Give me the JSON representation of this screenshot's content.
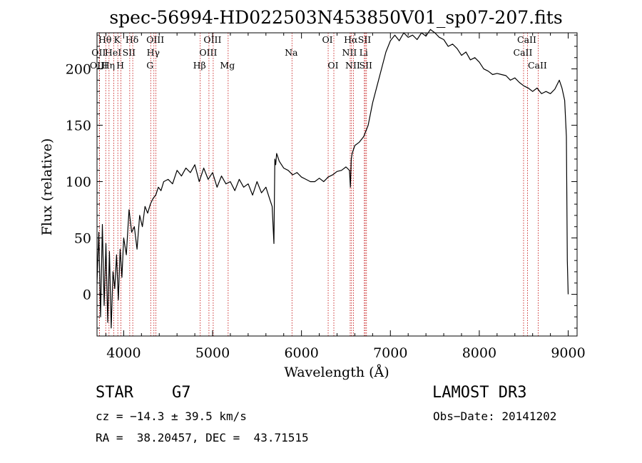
{
  "chart_data": {
    "type": "line",
    "title": "spec-56994-HD022503N453850V01_sp07-207.fits",
    "xlabel": "Wavelength (Å)",
    "ylabel": "Flux (relative)",
    "xlim": [
      3700,
      9100
    ],
    "ylim": [
      -37,
      232
    ],
    "xticks": [
      4000,
      5000,
      6000,
      7000,
      8000,
      9000
    ],
    "yticks": [
      0,
      50,
      100,
      150,
      200
    ],
    "series": [
      {
        "name": "spectrum",
        "color": "#000000",
        "x": [
          3700,
          3720,
          3740,
          3760,
          3780,
          3800,
          3820,
          3840,
          3860,
          3880,
          3900,
          3920,
          3940,
          3960,
          3980,
          4000,
          4030,
          4060,
          4090,
          4120,
          4150,
          4180,
          4210,
          4240,
          4270,
          4300,
          4330,
          4360,
          4390,
          4420,
          4450,
          4500,
          4550,
          4600,
          4650,
          4700,
          4750,
          4800,
          4850,
          4900,
          4950,
          5000,
          5050,
          5100,
          5150,
          5200,
          5250,
          5300,
          5350,
          5400,
          5450,
          5500,
          5550,
          5600,
          5640,
          5670,
          5690,
          5700,
          5710,
          5720,
          5750,
          5800,
          5850,
          5900,
          5950,
          6000,
          6050,
          6100,
          6150,
          6200,
          6250,
          6300,
          6350,
          6400,
          6450,
          6500,
          6540,
          6550,
          6560,
          6570,
          6600,
          6650,
          6700,
          6750,
          6800,
          6850,
          6900,
          6950,
          7000,
          7050,
          7100,
          7150,
          7200,
          7250,
          7300,
          7350,
          7400,
          7450,
          7500,
          7550,
          7600,
          7650,
          7700,
          7750,
          7800,
          7850,
          7900,
          7950,
          8000,
          8050,
          8100,
          8150,
          8200,
          8250,
          8300,
          8350,
          8400,
          8450,
          8500,
          8550,
          8600,
          8650,
          8700,
          8750,
          8800,
          8850,
          8900,
          8930,
          8960,
          8980,
          8990,
          9000
        ],
        "y": [
          10,
          55,
          -20,
          62,
          -10,
          45,
          -25,
          38,
          -30,
          20,
          5,
          35,
          -5,
          40,
          15,
          50,
          35,
          75,
          55,
          60,
          40,
          70,
          60,
          78,
          72,
          80,
          85,
          88,
          95,
          92,
          100,
          102,
          98,
          110,
          105,
          112,
          108,
          115,
          100,
          112,
          102,
          108,
          95,
          105,
          98,
          100,
          92,
          102,
          95,
          98,
          88,
          100,
          90,
          95,
          85,
          78,
          45,
          120,
          115,
          125,
          118,
          112,
          110,
          106,
          108,
          104,
          102,
          100,
          100,
          103,
          100,
          104,
          106,
          109,
          110,
          113,
          110,
          95,
          120,
          125,
          132,
          135,
          140,
          150,
          170,
          185,
          200,
          215,
          225,
          230,
          225,
          232,
          228,
          230,
          226,
          232,
          229,
          235,
          232,
          228,
          226,
          220,
          222,
          218,
          212,
          215,
          208,
          210,
          206,
          200,
          198,
          195,
          196,
          195,
          194,
          190,
          192,
          188,
          185,
          183,
          180,
          183,
          178,
          180,
          178,
          182,
          190,
          183,
          172,
          140,
          30,
          0
        ]
      }
    ],
    "lines": [
      {
        "name": "Hθ",
        "x": 3798,
        "row": 0
      },
      {
        "name": "OII",
        "x": 3727,
        "row": 1
      },
      {
        "name": "OIII",
        "x": 3727,
        "row": 2
      },
      {
        "name": "Hη",
        "x": 3835,
        "row": 2
      },
      {
        "name": "HeI",
        "x": 3889,
        "row": 1
      },
      {
        "name": "K",
        "x": 3934,
        "row": 0
      },
      {
        "name": "H",
        "x": 3969,
        "row": 2
      },
      {
        "name": "SII",
        "x": 4068,
        "row": 1
      },
      {
        "name": "Hδ",
        "x": 4102,
        "row": 0
      },
      {
        "name": "OIII",
        "x": 4363,
        "row": 0
      },
      {
        "name": "Hγ",
        "x": 4340,
        "row": 1
      },
      {
        "name": "G",
        "x": 4304,
        "row": 2
      },
      {
        "name": "Hβ",
        "x": 4861,
        "row": 2
      },
      {
        "name": "OIII",
        "x": 5007,
        "row": 0
      },
      {
        "name": "OIII",
        "x": 4959,
        "row": 1
      },
      {
        "name": "Mg",
        "x": 5175,
        "row": 2
      },
      {
        "name": "Na",
        "x": 5893,
        "row": 1
      },
      {
        "name": "OI",
        "x": 6300,
        "row": 0
      },
      {
        "name": "OI",
        "x": 6364,
        "row": 2
      },
      {
        "name": "Hα",
        "x": 6563,
        "row": 0
      },
      {
        "name": "NII",
        "x": 6548,
        "row": 1
      },
      {
        "name": "NII",
        "x": 6584,
        "row": 2
      },
      {
        "name": "SII",
        "x": 6717,
        "row": 0
      },
      {
        "name": "Li",
        "x": 6707,
        "row": 1
      },
      {
        "name": "SII",
        "x": 6731,
        "row": 2
      },
      {
        "name": "CaII",
        "x": 8542,
        "row": 0
      },
      {
        "name": "CaII",
        "x": 8498,
        "row": 1
      },
      {
        "name": "CaII",
        "x": 8662,
        "row": 2
      }
    ],
    "line_color": "#c00000",
    "grid": false
  },
  "info": {
    "class": "STAR",
    "subclass": "G7",
    "survey": "LAMOST DR3",
    "cz": "cz = −14.3 ± 39.5 km/s",
    "obs_date": "Obs−Date: 20141202",
    "radec": "RA =  38.20457, DEC =  43.71515"
  }
}
